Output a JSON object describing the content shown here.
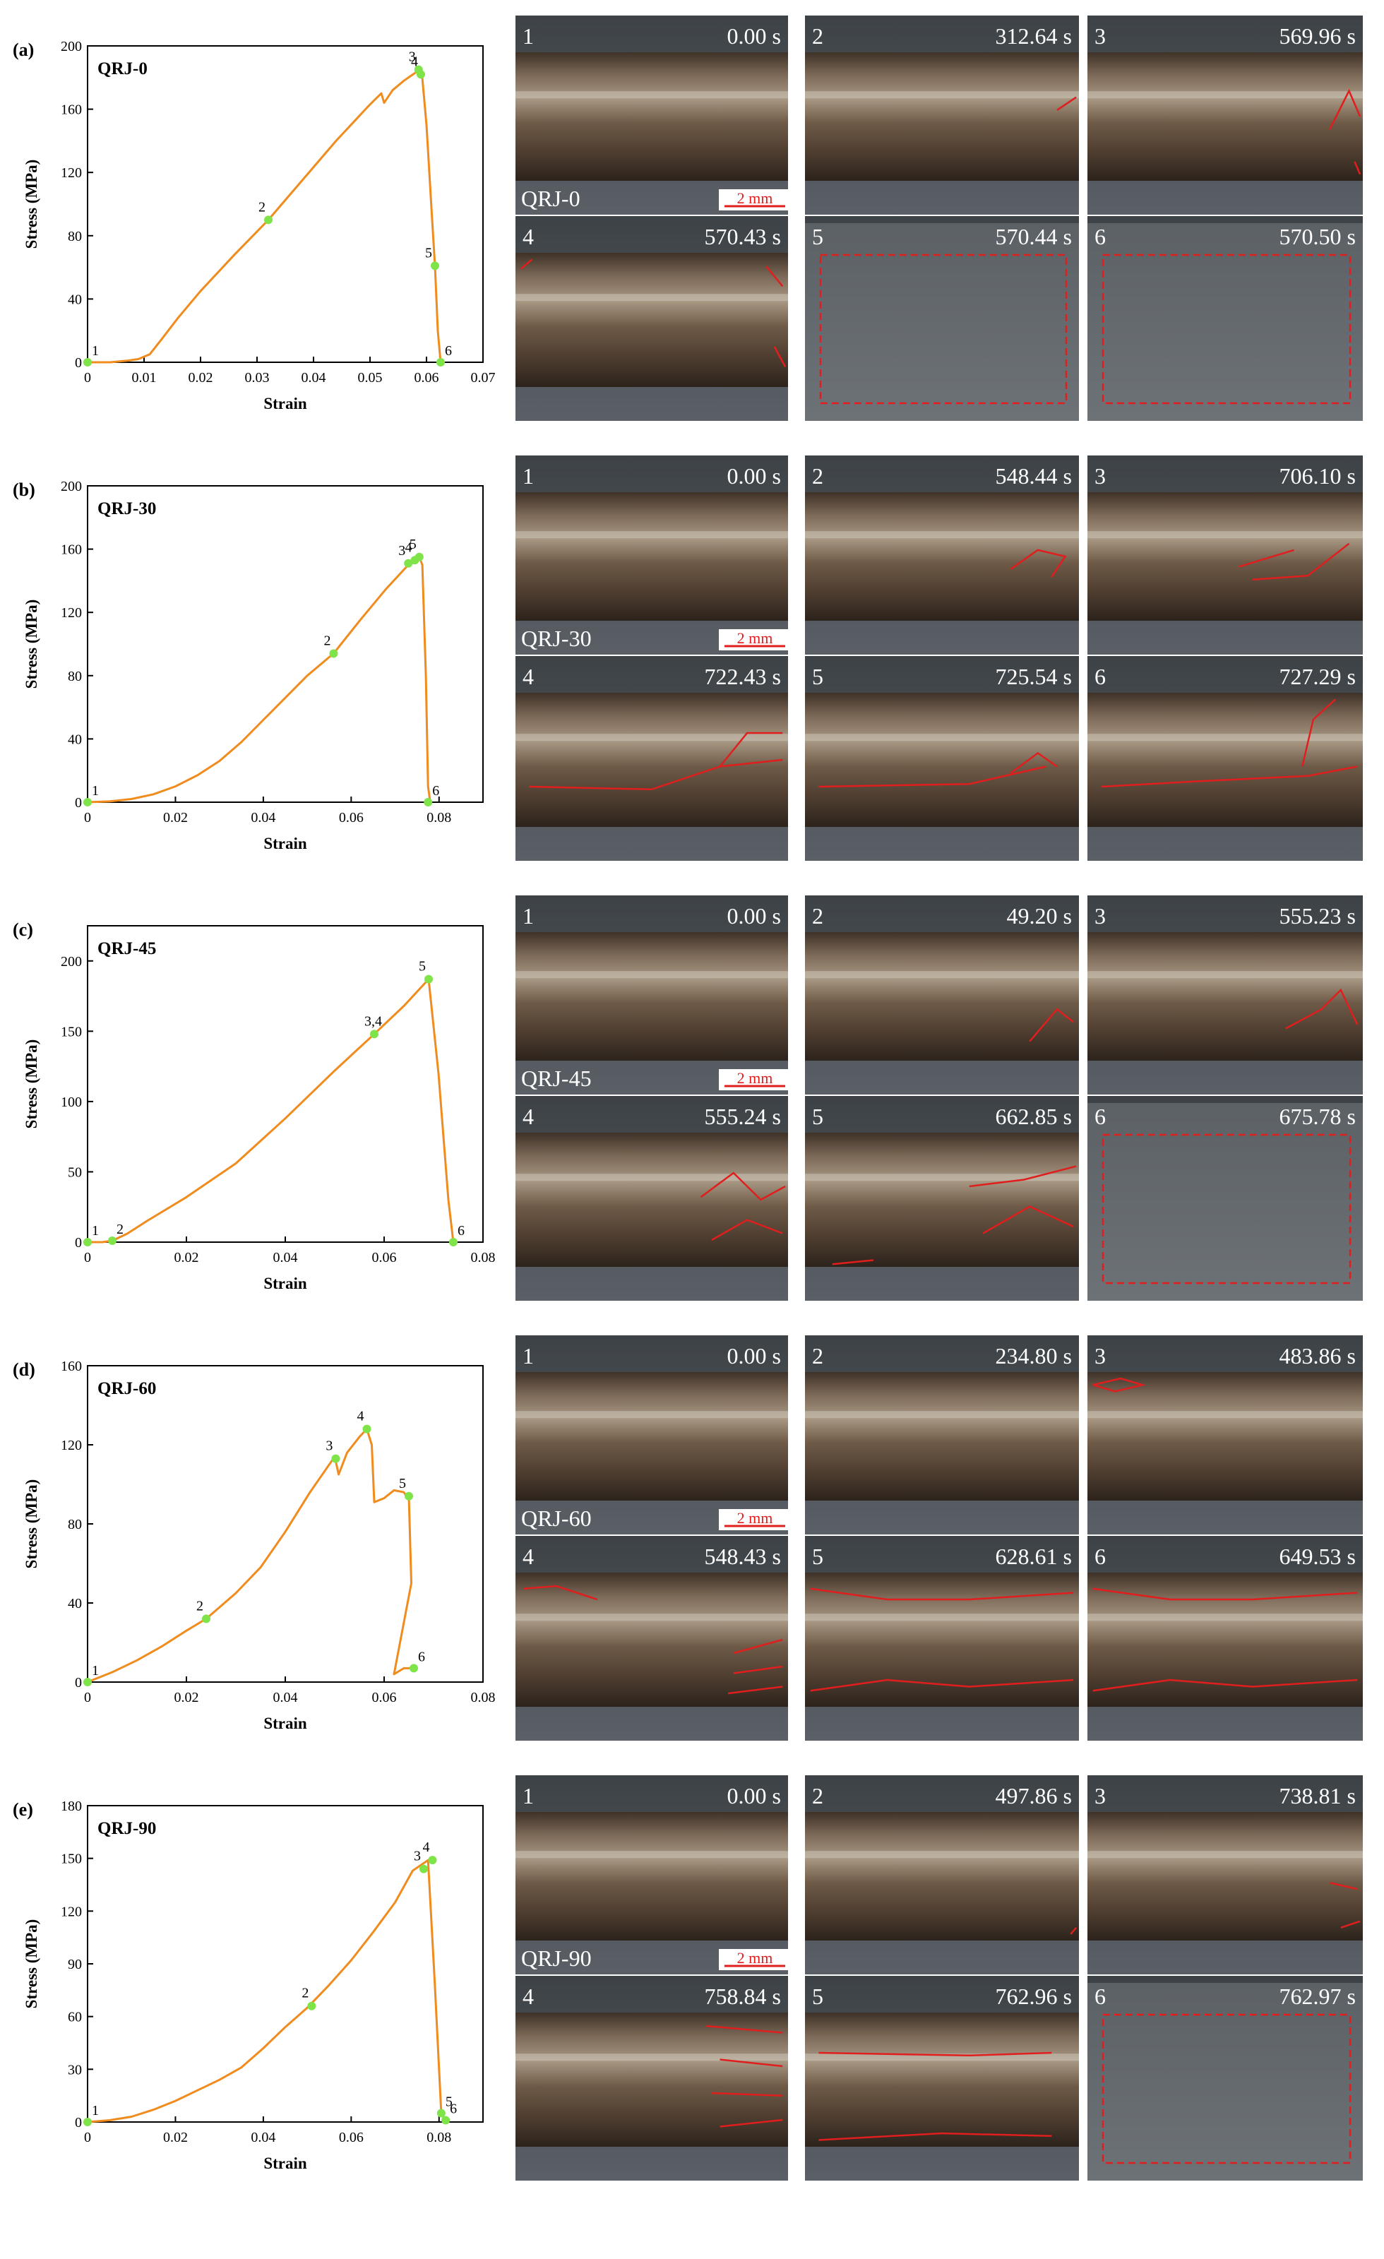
{
  "figure": {
    "photo_scale_label": "2 mm",
    "colors": {
      "curve": "#F08C1E",
      "marker": "#7FE34A",
      "crack": "#E01E1E",
      "label_text": "#FFFFFF",
      "scale_bar": "#E01E1E"
    }
  },
  "chart_data": [
    {
      "panel": "(a)",
      "title": "QRJ-0",
      "type": "line",
      "xlabel": "Strain",
      "ylabel": "Stress (MPa)",
      "xlim": [
        0,
        0.07
      ],
      "ylim": [
        0,
        200
      ],
      "xticks": [
        0,
        0.01,
        0.02,
        0.03,
        0.04,
        0.05,
        0.06,
        0.07
      ],
      "xtick_labels": [
        "0",
        "0.01",
        "0.02",
        "0.03",
        "0.04",
        "0.05",
        "0.06",
        "0.07"
      ],
      "yticks": [
        0,
        40,
        80,
        120,
        160,
        200
      ],
      "ytick_labels": [
        "0",
        "40",
        "80",
        "120",
        "160",
        "200"
      ],
      "x": [
        0,
        0.004,
        0.007,
        0.009,
        0.011,
        0.013,
        0.016,
        0.02,
        0.026,
        0.032,
        0.038,
        0.044,
        0.05,
        0.052,
        0.0525,
        0.054,
        0.056,
        0.058,
        0.0588,
        0.0592,
        0.06,
        0.061,
        0.0615,
        0.062,
        0.0625
      ],
      "y": [
        0,
        0,
        1,
        2,
        5,
        14,
        28,
        45,
        68,
        90,
        115,
        140,
        163,
        170,
        164,
        172,
        178,
        183,
        185,
        182,
        150,
        90,
        61,
        20,
        0
      ],
      "points": [
        {
          "label": "1",
          "x": 0.0,
          "y": 0
        },
        {
          "label": "2",
          "x": 0.032,
          "y": 90
        },
        {
          "label": "3",
          "x": 0.0586,
          "y": 185
        },
        {
          "label": "4",
          "x": 0.059,
          "y": 182
        },
        {
          "label": "5",
          "x": 0.0615,
          "y": 61
        },
        {
          "label": "6",
          "x": 0.0625,
          "y": 0
        }
      ]
    },
    {
      "panel": "(b)",
      "title": "QRJ-30",
      "type": "line",
      "xlabel": "Strain",
      "ylabel": "Stress (MPa)",
      "xlim": [
        0,
        0.09
      ],
      "ylim": [
        0,
        200
      ],
      "xticks": [
        0,
        0.02,
        0.04,
        0.06,
        0.08
      ],
      "xtick_labels": [
        "0",
        "0.02",
        "0.04",
        "0.06",
        "0.08"
      ],
      "yticks": [
        0,
        40,
        80,
        120,
        160,
        200
      ],
      "ytick_labels": [
        "0",
        "40",
        "80",
        "120",
        "160",
        "200"
      ],
      "x": [
        0,
        0.005,
        0.01,
        0.015,
        0.02,
        0.025,
        0.03,
        0.035,
        0.04,
        0.045,
        0.05,
        0.056,
        0.062,
        0.068,
        0.073,
        0.0745,
        0.0755,
        0.0762,
        0.077,
        0.0775,
        0.078
      ],
      "y": [
        0,
        0.5,
        2,
        5,
        10,
        17,
        26,
        38,
        52,
        66,
        80,
        94,
        115,
        135,
        150,
        152,
        155,
        150,
        80,
        10,
        0
      ],
      "points": [
        {
          "label": "1",
          "x": 0.0,
          "y": 0
        },
        {
          "label": "2",
          "x": 0.056,
          "y": 94
        },
        {
          "label": "3",
          "x": 0.073,
          "y": 151
        },
        {
          "label": "4",
          "x": 0.0745,
          "y": 153
        },
        {
          "label": "5",
          "x": 0.0755,
          "y": 155
        },
        {
          "label": "6",
          "x": 0.0775,
          "y": 0
        }
      ]
    },
    {
      "panel": "(c)",
      "title": "QRJ-45",
      "type": "line",
      "xlabel": "Strain",
      "ylabel": "Stress (MPa)",
      "xlim": [
        0,
        0.08
      ],
      "ylim": [
        0,
        225
      ],
      "xticks": [
        0,
        0.02,
        0.04,
        0.06,
        0.08
      ],
      "xtick_labels": [
        "0",
        "0.02",
        "0.04",
        "0.06",
        "0.08"
      ],
      "yticks": [
        0,
        50,
        100,
        150,
        200
      ],
      "ytick_labels": [
        "0",
        "50",
        "100",
        "150",
        "200"
      ],
      "x": [
        0,
        0.003,
        0.005,
        0.008,
        0.012,
        0.02,
        0.03,
        0.04,
        0.05,
        0.058,
        0.064,
        0.069,
        0.071,
        0.073,
        0.074
      ],
      "y": [
        0,
        0,
        1,
        6,
        15,
        32,
        56,
        88,
        122,
        148,
        168,
        187,
        120,
        30,
        0
      ],
      "points": [
        {
          "label": "1",
          "x": 0.0,
          "y": 0
        },
        {
          "label": "2",
          "x": 0.005,
          "y": 1
        },
        {
          "label": "3,4",
          "x": 0.058,
          "y": 148
        },
        {
          "label": "5",
          "x": 0.069,
          "y": 187
        },
        {
          "label": "6",
          "x": 0.074,
          "y": 0
        }
      ]
    },
    {
      "panel": "(d)",
      "title": "QRJ-60",
      "type": "line",
      "xlabel": "Strain",
      "ylabel": "Stress (MPa)",
      "xlim": [
        0,
        0.08
      ],
      "ylim": [
        0,
        160
      ],
      "xticks": [
        0,
        0.02,
        0.04,
        0.06,
        0.08
      ],
      "xtick_labels": [
        "0",
        "0.02",
        "0.04",
        "0.06",
        "0.08"
      ],
      "yticks": [
        0,
        40,
        80,
        120,
        160
      ],
      "ytick_labels": [
        "0",
        "40",
        "80",
        "120",
        "160"
      ],
      "x": [
        0,
        0.005,
        0.01,
        0.015,
        0.02,
        0.024,
        0.03,
        0.035,
        0.04,
        0.045,
        0.05,
        0.0508,
        0.0525,
        0.055,
        0.0565,
        0.0575,
        0.058,
        0.06,
        0.062,
        0.064,
        0.0645,
        0.065,
        0.0655,
        0.062,
        0.064,
        0.066
      ],
      "y": [
        0,
        5,
        11,
        18,
        26,
        32,
        45,
        58,
        76,
        96,
        114,
        105,
        116,
        124,
        128,
        120,
        91,
        93,
        97,
        96,
        94,
        94,
        50,
        4,
        7,
        7
      ],
      "points": [
        {
          "label": "1",
          "x": 0.0,
          "y": 0
        },
        {
          "label": "2",
          "x": 0.024,
          "y": 32
        },
        {
          "label": "3",
          "x": 0.0502,
          "y": 113
        },
        {
          "label": "4",
          "x": 0.0565,
          "y": 128
        },
        {
          "label": "5",
          "x": 0.065,
          "y": 94
        },
        {
          "label": "6",
          "x": 0.066,
          "y": 7
        }
      ]
    },
    {
      "panel": "(e)",
      "title": "QRJ-90",
      "type": "line",
      "xlabel": "Strain",
      "ylabel": "Stress (MPa)",
      "xlim": [
        0,
        0.09
      ],
      "ylim": [
        0,
        180
      ],
      "xticks": [
        0,
        0.02,
        0.04,
        0.06,
        0.08
      ],
      "xtick_labels": [
        "0",
        "0.02",
        "0.04",
        "0.06",
        "0.08"
      ],
      "yticks": [
        0,
        30,
        60,
        90,
        120,
        150,
        180
      ],
      "ytick_labels": [
        "0",
        "30",
        "60",
        "90",
        "120",
        "150",
        "180"
      ],
      "x": [
        0,
        0.005,
        0.01,
        0.015,
        0.02,
        0.025,
        0.03,
        0.035,
        0.04,
        0.045,
        0.05,
        0.055,
        0.06,
        0.065,
        0.07,
        0.074,
        0.0775,
        0.079,
        0.0805,
        0.0815
      ],
      "y": [
        0,
        1,
        3,
        7,
        12,
        18,
        24,
        31,
        42,
        54,
        65,
        78,
        92,
        108,
        125,
        143,
        149,
        80,
        5,
        1
      ],
      "points": [
        {
          "label": "1",
          "x": 0.0,
          "y": 0
        },
        {
          "label": "2",
          "x": 0.051,
          "y": 66
        },
        {
          "label": "3",
          "x": 0.0765,
          "y": 144
        },
        {
          "label": "4",
          "x": 0.0785,
          "y": 149
        },
        {
          "label": "5",
          "x": 0.0805,
          "y": 5
        },
        {
          "label": "6",
          "x": 0.0815,
          "y": 1
        }
      ]
    }
  ],
  "photos": [
    {
      "specimen": "QRJ-0",
      "frames": [
        {
          "index": "1",
          "time": "0.00 s"
        },
        {
          "index": "2",
          "time": "312.64 s"
        },
        {
          "index": "3",
          "time": "569.96 s"
        },
        {
          "index": "4",
          "time": "570.43 s"
        },
        {
          "index": "5",
          "time": "570.44 s"
        },
        {
          "index": "6",
          "time": "570.50 s"
        }
      ]
    },
    {
      "specimen": "QRJ-30",
      "frames": [
        {
          "index": "1",
          "time": "0.00 s"
        },
        {
          "index": "2",
          "time": "548.44 s"
        },
        {
          "index": "3",
          "time": "706.10 s"
        },
        {
          "index": "4",
          "time": "722.43 s"
        },
        {
          "index": "5",
          "time": "725.54 s"
        },
        {
          "index": "6",
          "time": "727.29 s"
        }
      ]
    },
    {
      "specimen": "QRJ-45",
      "frames": [
        {
          "index": "1",
          "time": "0.00 s"
        },
        {
          "index": "2",
          "time": "49.20 s"
        },
        {
          "index": "3",
          "time": "555.23 s"
        },
        {
          "index": "4",
          "time": "555.24 s"
        },
        {
          "index": "5",
          "time": "662.85 s"
        },
        {
          "index": "6",
          "time": "675.78 s"
        }
      ]
    },
    {
      "specimen": "QRJ-60",
      "frames": [
        {
          "index": "1",
          "time": "0.00 s"
        },
        {
          "index": "2",
          "time": "234.80 s"
        },
        {
          "index": "3",
          "time": "483.86 s"
        },
        {
          "index": "4",
          "time": "548.43 s"
        },
        {
          "index": "5",
          "time": "628.61 s"
        },
        {
          "index": "6",
          "time": "649.53 s"
        }
      ]
    },
    {
      "specimen": "QRJ-90",
      "frames": [
        {
          "index": "1",
          "time": "0.00 s"
        },
        {
          "index": "2",
          "time": "497.86 s"
        },
        {
          "index": "3",
          "time": "738.81 s"
        },
        {
          "index": "4",
          "time": "758.84 s"
        },
        {
          "index": "5",
          "time": "762.96 s"
        },
        {
          "index": "6",
          "time": "762.97 s"
        }
      ]
    }
  ]
}
